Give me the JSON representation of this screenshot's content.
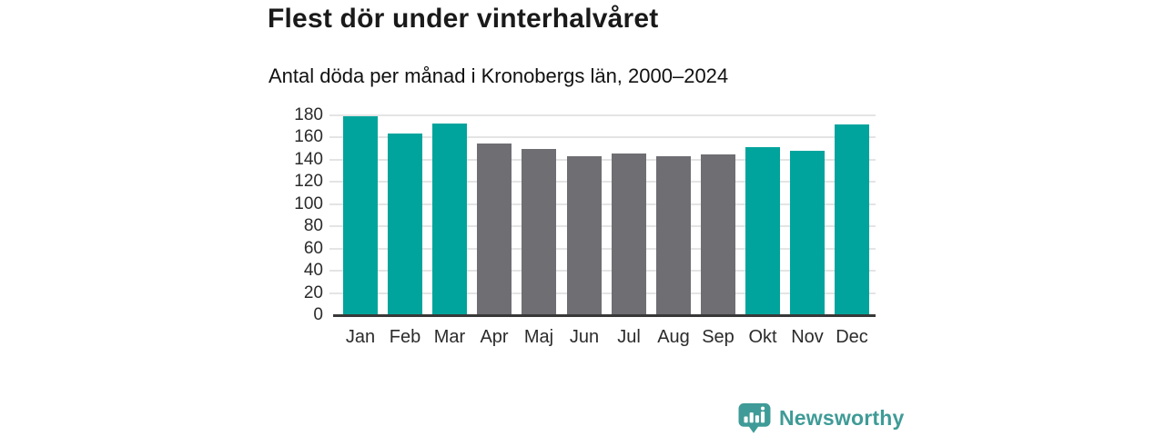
{
  "chart_data": {
    "type": "bar",
    "title": "Flest dör under vinterhalvåret",
    "subtitle": "Antal döda per månad i Kronobergs län, 2000–2024",
    "categories": [
      "Jan",
      "Feb",
      "Mar",
      "Apr",
      "Maj",
      "Jun",
      "Jul",
      "Aug",
      "Sep",
      "Okt",
      "Nov",
      "Dec"
    ],
    "values": [
      179,
      164,
      173,
      155,
      150,
      143,
      146,
      143,
      145,
      151,
      148,
      172
    ],
    "bar_color_keys": [
      "winter",
      "winter",
      "winter",
      "summer",
      "summer",
      "summer",
      "summer",
      "summer",
      "summer",
      "winter",
      "winter",
      "winter"
    ],
    "colors": {
      "winter": "#00a49c",
      "summer": "#6e6e73"
    },
    "xlabel": "",
    "ylabel": "",
    "ylim": [
      0,
      180
    ],
    "yticks": [
      0,
      20,
      40,
      60,
      80,
      100,
      120,
      140,
      160,
      180
    ],
    "grid": true,
    "legend": false
  },
  "footer": {
    "brand": "Newsworthy",
    "brand_color": "#3f9b97",
    "logo_icon": "bar-chart-speech-bubble"
  }
}
